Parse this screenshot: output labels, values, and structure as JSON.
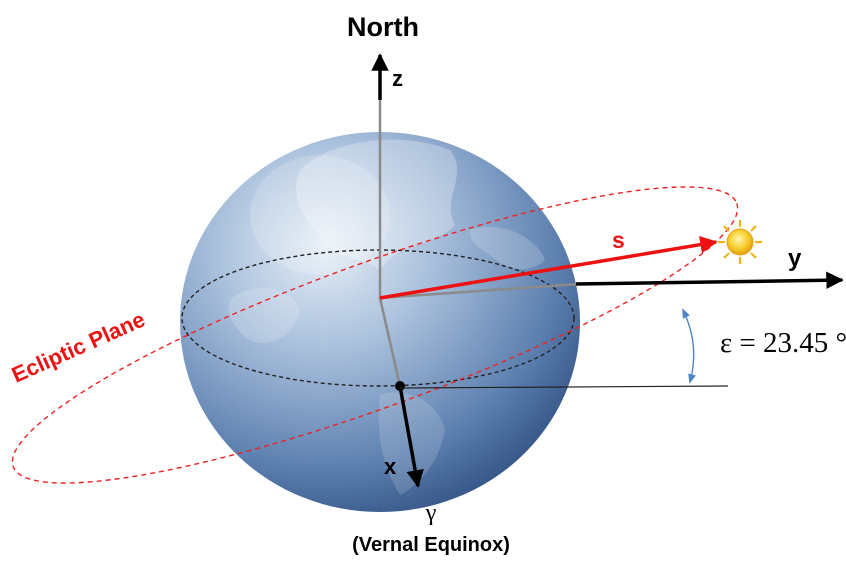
{
  "labels": {
    "north": "North",
    "z_axis": "z",
    "y_axis": "y",
    "x_axis": "x",
    "s_vector": "s",
    "gamma": "γ",
    "vernal_equinox": "(Vernal Equinox)",
    "ecliptic_plane": "Ecliptic Plane",
    "obliquity": "ε = 23.45 °"
  },
  "colors": {
    "axis": "#000000",
    "sun_vector": "#ee1111",
    "ecliptic": "#ee2222",
    "globe_light": "#d7e4f1",
    "globe_mid": "#7d9cc2",
    "globe_dark": "#2e4f7f",
    "angle_arrow": "#4a86c8",
    "sun": "#f5c518"
  },
  "icons": {
    "sun": "sun-icon",
    "globe": "globe-icon"
  }
}
